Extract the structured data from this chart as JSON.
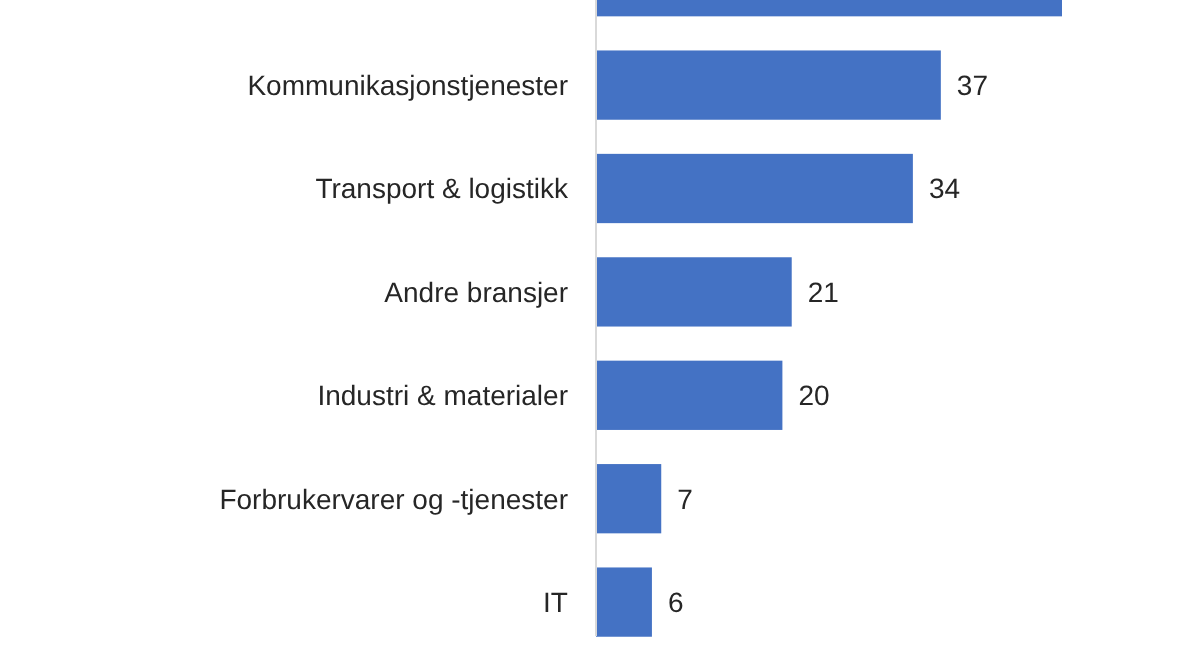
{
  "chart_data": {
    "type": "bar",
    "orientation": "horizontal",
    "categories": [
      null,
      "Kommunikasjonstjenester",
      "Transport & logistikk",
      "Andre bransjer",
      "Industri & materialer",
      "Forbrukervarer og -tjenester",
      "IT"
    ],
    "values": [
      50,
      37,
      34,
      21,
      20,
      7,
      6
    ],
    "value_labels": [
      null,
      "37",
      "34",
      "21",
      "20",
      "7",
      "6"
    ],
    "color": "#4472c4"
  }
}
